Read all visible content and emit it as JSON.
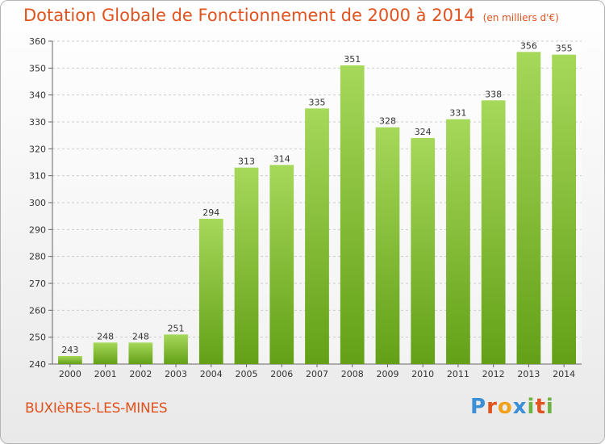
{
  "title": "Dotation Globale de Fonctionnement de 2000 à 2014",
  "subtitle": "(en milliers d'€)",
  "commune": "BUXIèRES-LES-MINES",
  "logo": "Proxiti",
  "colors": {
    "title": "#e0531f",
    "bar_top": "#a6d85a",
    "bar_bottom": "#63a017",
    "grid": "#cccccc"
  },
  "chart_data": {
    "type": "bar",
    "title": "Dotation Globale de Fonctionnement de 2000 à 2014",
    "subtitle": "(en milliers d'€)",
    "xlabel": "",
    "ylabel": "",
    "categories": [
      "2000",
      "2001",
      "2002",
      "2003",
      "2004",
      "2005",
      "2006",
      "2007",
      "2008",
      "2009",
      "2010",
      "2011",
      "2012",
      "2013",
      "2014"
    ],
    "values": [
      243,
      248,
      248,
      251,
      294,
      313,
      314,
      335,
      351,
      328,
      324,
      331,
      338,
      356,
      355
    ],
    "ylim": [
      240,
      360
    ],
    "yticks": [
      240,
      250,
      260,
      270,
      280,
      290,
      300,
      310,
      320,
      330,
      340,
      350,
      360
    ],
    "grid": true,
    "data_labels": true
  }
}
